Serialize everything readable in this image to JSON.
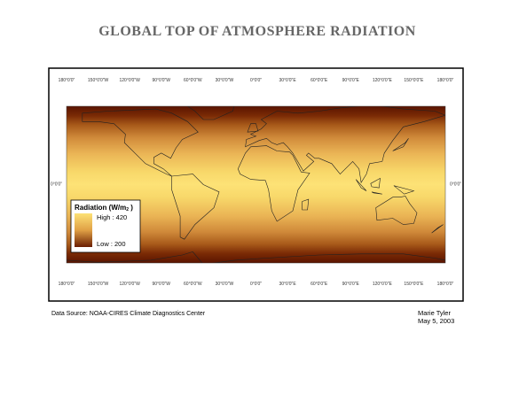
{
  "title": "GLOBAL TOP OF ATMOSPHERE RADIATION",
  "longitude_labels": [
    "180°0'0\"",
    "150°0'0\"W",
    "120°0'0\"W",
    "90°0'0\"W",
    "60°0'0\"W",
    "30°0'0\"W",
    "0°0'0\"",
    "30°0'0\"E",
    "60°0'0\"E",
    "90°0'0\"E",
    "120°0'0\"E",
    "150°0'0\"E",
    "180°0'0\""
  ],
  "latitude_label": "0°0'0\"",
  "legend": {
    "title": "Radiation (W/m",
    "title_superscript": "2",
    "title_end": " )",
    "high": "High : 420",
    "low": "Low : 200"
  },
  "source": "Data Source: NOAA-CIRES Climate Diagnostics Center",
  "author": "Marie Tyler",
  "date": "May 5, 2003"
}
